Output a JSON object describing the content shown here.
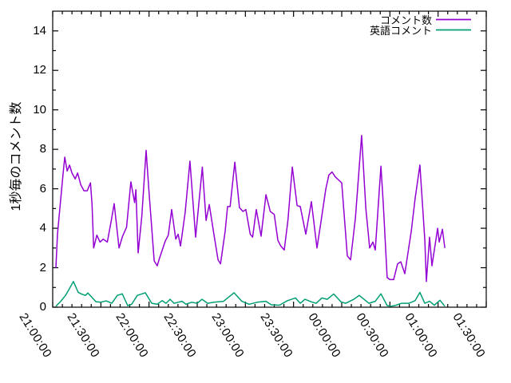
{
  "figure": {
    "background": "#ffffff",
    "border_color": "#000000",
    "text_color": "#000000"
  },
  "chart_data": {
    "type": "line",
    "title": "",
    "xlabel": "",
    "ylabel": "1秒毎のコメント数",
    "ylim": [
      0,
      15
    ],
    "y_major_ticks": [
      0,
      2,
      4,
      6,
      8,
      10,
      12,
      14
    ],
    "y_minor_step": 1,
    "grid": false,
    "legend": {
      "position": "top-right-inside",
      "box": false
    },
    "x_axis": {
      "kind": "time",
      "total_minutes": 270,
      "major_tick_minutes": 30,
      "minor_tick_minutes": 6,
      "tick_labels": [
        "21:00:00",
        "21:30:00",
        "22:00:00",
        "22:30:00",
        "23:00:00",
        "23:30:00",
        "00:00:00",
        "00:30:00",
        "01:00:00",
        "01:30:00"
      ]
    },
    "series": [
      {
        "name": "コメント数",
        "color": "#9400d3",
        "points_t_min_value": [
          [
            2,
            2.0
          ],
          [
            3,
            3.7
          ],
          [
            5,
            5.5
          ],
          [
            6.5,
            6.8
          ],
          [
            7.5,
            7.6
          ],
          [
            9,
            6.9
          ],
          [
            10.5,
            7.2
          ],
          [
            12,
            6.8
          ],
          [
            14,
            6.5
          ],
          [
            15.5,
            6.8
          ],
          [
            17.5,
            6.2
          ],
          [
            19.5,
            5.9
          ],
          [
            21.5,
            5.9
          ],
          [
            23.5,
            6.3
          ],
          [
            24.5,
            5.2
          ],
          [
            25.5,
            3.0
          ],
          [
            27.5,
            3.65
          ],
          [
            29.5,
            3.3
          ],
          [
            31.5,
            3.45
          ],
          [
            34,
            3.3
          ],
          [
            36.5,
            4.4
          ],
          [
            38.3,
            5.25
          ],
          [
            41.3,
            3.0
          ],
          [
            43.5,
            3.6
          ],
          [
            46,
            4.05
          ],
          [
            48.7,
            6.35
          ],
          [
            51,
            5.3
          ],
          [
            51.8,
            5.95
          ],
          [
            53.2,
            2.75
          ],
          [
            55.5,
            4.6
          ],
          [
            58.2,
            7.95
          ],
          [
            60,
            5.8
          ],
          [
            61.5,
            4.2
          ],
          [
            63.2,
            2.35
          ],
          [
            65.1,
            2.1
          ],
          [
            66.6,
            2.5
          ],
          [
            70.1,
            3.35
          ],
          [
            72,
            3.65
          ],
          [
            74.1,
            4.95
          ],
          [
            76.6,
            3.45
          ],
          [
            78.1,
            3.7
          ],
          [
            79.6,
            3.1
          ],
          [
            82.5,
            4.8
          ],
          [
            85.5,
            7.4
          ],
          [
            89,
            3.55
          ],
          [
            93.2,
            7.1
          ],
          [
            95.5,
            4.4
          ],
          [
            97.5,
            5.2
          ],
          [
            100.4,
            3.7
          ],
          [
            103,
            2.4
          ],
          [
            104.5,
            2.2
          ],
          [
            107.4,
            3.85
          ],
          [
            108.9,
            5.1
          ],
          [
            110.5,
            5.1
          ],
          [
            113.4,
            7.35
          ],
          [
            116.3,
            5.05
          ],
          [
            118.5,
            4.85
          ],
          [
            120.3,
            4.95
          ],
          [
            123,
            3.7
          ],
          [
            124.5,
            3.55
          ],
          [
            126.8,
            4.95
          ],
          [
            129.8,
            3.6
          ],
          [
            132.8,
            5.7
          ],
          [
            135.5,
            4.85
          ],
          [
            138,
            4.7
          ],
          [
            140.2,
            3.4
          ],
          [
            142,
            3.1
          ],
          [
            144.2,
            2.9
          ],
          [
            146.5,
            4.4
          ],
          [
            149.2,
            7.1
          ],
          [
            152.2,
            5.15
          ],
          [
            154.2,
            5.1
          ],
          [
            157.6,
            3.7
          ],
          [
            161.1,
            5.35
          ],
          [
            164.6,
            3.0
          ],
          [
            167,
            4.3
          ],
          [
            170.1,
            6.0
          ],
          [
            172,
            6.7
          ],
          [
            174,
            6.85
          ],
          [
            176,
            6.6
          ],
          [
            178,
            6.45
          ],
          [
            180,
            6.3
          ],
          [
            183.5,
            2.6
          ],
          [
            185.5,
            2.4
          ],
          [
            188.5,
            4.5
          ],
          [
            192.4,
            8.7
          ],
          [
            195,
            5.0
          ],
          [
            197.4,
            3.0
          ],
          [
            199.4,
            3.3
          ],
          [
            200.9,
            2.9
          ],
          [
            204.4,
            7.15
          ],
          [
            205.9,
            5.2
          ],
          [
            208.3,
            1.5
          ],
          [
            210,
            1.4
          ],
          [
            212.3,
            1.4
          ],
          [
            214.8,
            2.2
          ],
          [
            216.8,
            2.3
          ],
          [
            219.3,
            1.7
          ],
          [
            221.5,
            2.9
          ],
          [
            223.3,
            3.85
          ],
          [
            225.7,
            5.5
          ],
          [
            228.7,
            7.2
          ],
          [
            231.7,
            3.45
          ],
          [
            232.7,
            1.3
          ],
          [
            234.7,
            3.55
          ],
          [
            236.2,
            2.1
          ],
          [
            239.7,
            4.0
          ],
          [
            240.7,
            3.3
          ],
          [
            242.7,
            3.95
          ],
          [
            244.2,
            3.0
          ]
        ]
      },
      {
        "name": "英語コメント",
        "color": "#009e73",
        "points_t_min_value": [
          [
            2,
            0.05
          ],
          [
            5,
            0.3
          ],
          [
            8,
            0.6
          ],
          [
            10.5,
            0.95
          ],
          [
            12.9,
            1.3
          ],
          [
            15.9,
            0.75
          ],
          [
            18.4,
            0.65
          ],
          [
            20.4,
            0.6
          ],
          [
            21.9,
            0.72
          ],
          [
            24.4,
            0.5
          ],
          [
            26.9,
            0.28
          ],
          [
            29.8,
            0.25
          ],
          [
            33.3,
            0.32
          ],
          [
            36.8,
            0.2
          ],
          [
            40.3,
            0.6
          ],
          [
            43.3,
            0.68
          ],
          [
            46.7,
            0.08
          ],
          [
            49.2,
            0.15
          ],
          [
            52.7,
            0.6
          ],
          [
            57.7,
            0.73
          ],
          [
            61.7,
            0.2
          ],
          [
            65.1,
            0.15
          ],
          [
            68.1,
            0.33
          ],
          [
            70.6,
            0.2
          ],
          [
            73.1,
            0.4
          ],
          [
            75.6,
            0.2
          ],
          [
            78.1,
            0.25
          ],
          [
            80.6,
            0.3
          ],
          [
            83,
            0.15
          ],
          [
            86.5,
            0.25
          ],
          [
            90,
            0.2
          ],
          [
            93,
            0.4
          ],
          [
            96.5,
            0.2
          ],
          [
            100.4,
            0.25
          ],
          [
            106.4,
            0.3
          ],
          [
            112.9,
            0.73
          ],
          [
            117.8,
            0.3
          ],
          [
            122.3,
            0.15
          ],
          [
            127.3,
            0.25
          ],
          [
            132.8,
            0.3
          ],
          [
            136.2,
            0.12
          ],
          [
            141.2,
            0.1
          ],
          [
            146.2,
            0.33
          ],
          [
            151.2,
            0.47
          ],
          [
            154.2,
            0.2
          ],
          [
            157.1,
            0.4
          ],
          [
            161.1,
            0.27
          ],
          [
            164.1,
            0.2
          ],
          [
            167.6,
            0.47
          ],
          [
            171,
            0.4
          ],
          [
            175,
            0.67
          ],
          [
            179.5,
            0.27
          ],
          [
            182.5,
            0.2
          ],
          [
            187.5,
            0.4
          ],
          [
            190.9,
            0.6
          ],
          [
            196.9,
            0.2
          ],
          [
            200.9,
            0.3
          ],
          [
            204.4,
            0.68
          ],
          [
            208.3,
            0.08
          ],
          [
            210.8,
            0.05
          ],
          [
            213.8,
            0.1
          ],
          [
            217.3,
            0.2
          ],
          [
            221.8,
            0.2
          ],
          [
            225.7,
            0.33
          ],
          [
            228.7,
            0.75
          ],
          [
            231.7,
            0.2
          ],
          [
            234.7,
            0.3
          ],
          [
            237.7,
            0.1
          ],
          [
            241.2,
            0.35
          ],
          [
            244.2,
            0.05
          ]
        ]
      }
    ]
  }
}
